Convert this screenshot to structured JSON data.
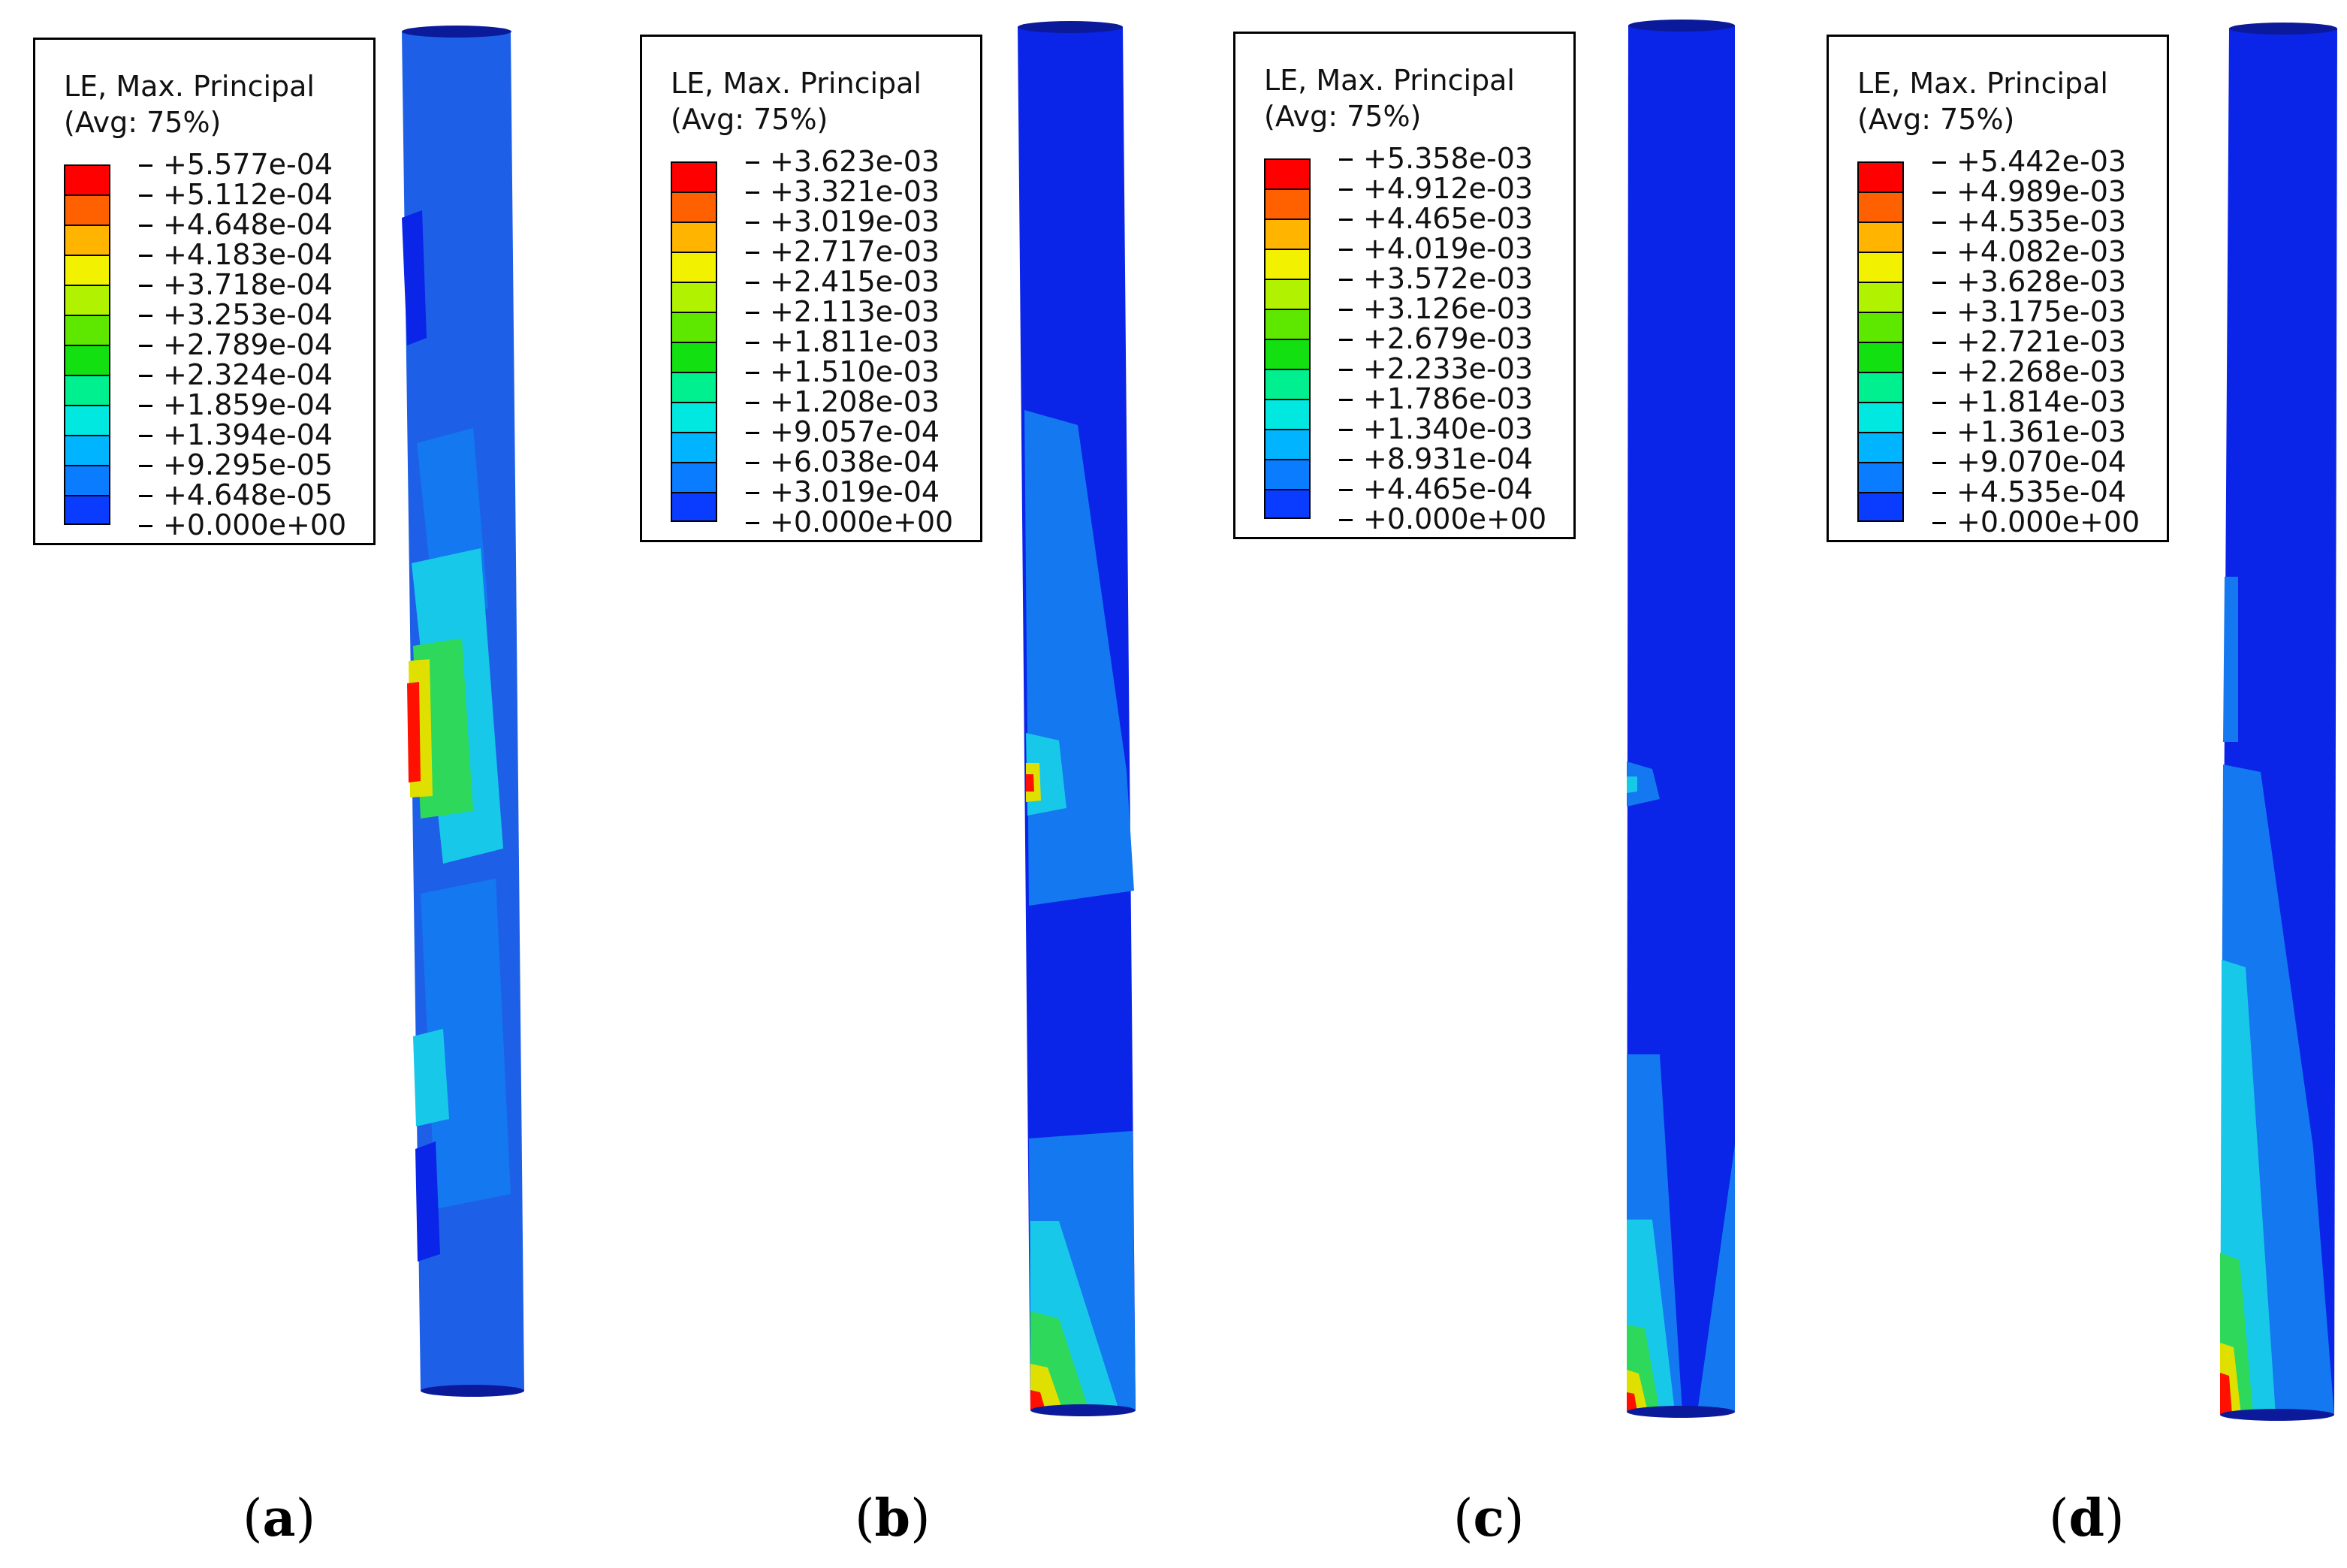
{
  "palette": [
    "#0000ff",
    "#0a3cff",
    "#0a7cff",
    "#00b4ff",
    "#00e8e0",
    "#00f090",
    "#12e010",
    "#5ee800",
    "#b0f200",
    "#f2f200",
    "#ffb400",
    "#ff6000",
    "#ff0000"
  ],
  "column_colors": {
    "base": "#1e5fe8",
    "dark": "#0a24e8",
    "mid": "#1478f0",
    "cyan": "#18c8e8",
    "green": "#2ed85a",
    "yellow": "#e0e000",
    "red": "#ff1000",
    "cap": "#0b1a9a"
  },
  "panels": [
    {
      "label": "a",
      "legend": {
        "title": "LE, Max. Principal",
        "subtitle": "(Avg: 75%)",
        "values": [
          "+5.577e-04",
          "+5.112e-04",
          "+4.648e-04",
          "+4.183e-04",
          "+3.718e-04",
          "+3.253e-04",
          "+2.789e-04",
          "+2.324e-04",
          "+1.859e-04",
          "+1.394e-04",
          "+9.295e-05",
          "+4.648e-05",
          "+0.000e+00"
        ]
      }
    },
    {
      "label": "b",
      "legend": {
        "title": "LE, Max. Principal",
        "subtitle": "(Avg: 75%)",
        "values": [
          "+3.623e-03",
          "+3.321e-03",
          "+3.019e-03",
          "+2.717e-03",
          "+2.415e-03",
          "+2.113e-03",
          "+1.811e-03",
          "+1.510e-03",
          "+1.208e-03",
          "+9.057e-04",
          "+6.038e-04",
          "+3.019e-04",
          "+0.000e+00"
        ]
      }
    },
    {
      "label": "c",
      "legend": {
        "title": "LE, Max. Principal",
        "subtitle": "(Avg: 75%)",
        "values": [
          "+5.358e-03",
          "+4.912e-03",
          "+4.465e-03",
          "+4.019e-03",
          "+3.572e-03",
          "+3.126e-03",
          "+2.679e-03",
          "+2.233e-03",
          "+1.786e-03",
          "+1.340e-03",
          "+8.931e-04",
          "+4.465e-04",
          "+0.000e+00"
        ]
      }
    },
    {
      "label": "d",
      "legend": {
        "title": "LE, Max. Principal",
        "subtitle": "(Avg: 75%)",
        "values": [
          "+5.442e-03",
          "+4.989e-03",
          "+4.535e-03",
          "+4.082e-03",
          "+3.628e-03",
          "+3.175e-03",
          "+2.721e-03",
          "+2.268e-03",
          "+1.814e-03",
          "+1.361e-03",
          "+9.070e-04",
          "+4.535e-04",
          "+0.000e+00"
        ]
      }
    }
  ]
}
